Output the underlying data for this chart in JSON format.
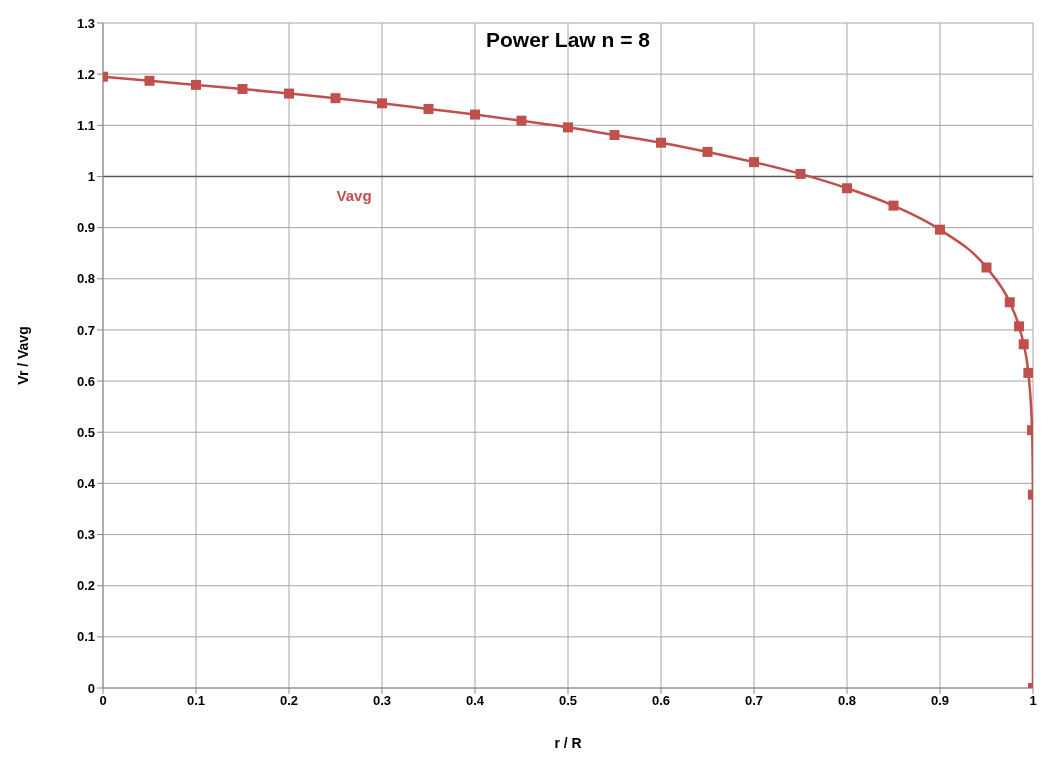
{
  "chart_data": {
    "type": "line",
    "title": "Power Law n = 8",
    "xlabel": "r / R",
    "ylabel": "Vr / Vavg",
    "x": [
      0,
      0.05,
      0.1,
      0.15,
      0.2,
      0.25,
      0.3,
      0.35,
      0.4,
      0.45,
      0.5,
      0.55,
      0.6,
      0.65,
      0.7,
      0.75,
      0.8,
      0.85,
      0.9,
      0.95,
      0.975,
      0.985,
      0.99,
      0.995,
      0.999,
      0.9999,
      1
    ],
    "series": [
      {
        "color": "#c0504d",
        "values": [
          1.195,
          1.187,
          1.179,
          1.171,
          1.162,
          1.153,
          1.143,
          1.132,
          1.121,
          1.109,
          1.096,
          1.081,
          1.066,
          1.048,
          1.028,
          1.005,
          0.977,
          0.943,
          0.896,
          0.822,
          0.754,
          0.707,
          0.672,
          0.616,
          0.504,
          0.378,
          0
        ]
      }
    ],
    "xlim": [
      0,
      1
    ],
    "xticks": [
      0,
      0.1,
      0.2,
      0.3,
      0.4,
      0.5,
      0.6,
      0.7,
      0.8,
      0.9,
      1
    ],
    "ylim": [
      0,
      1.3
    ],
    "yticks": [
      0,
      0.1,
      0.2,
      0.3,
      0.4,
      0.5,
      0.6,
      0.7,
      0.8,
      0.9,
      1,
      1.1,
      1.2,
      1.3
    ],
    "ref_lines": [
      {
        "axis": "y",
        "value": 1,
        "label": "Vavg",
        "color": "#595959"
      }
    ],
    "grid": true,
    "marker": "square",
    "line_style": "solid"
  }
}
